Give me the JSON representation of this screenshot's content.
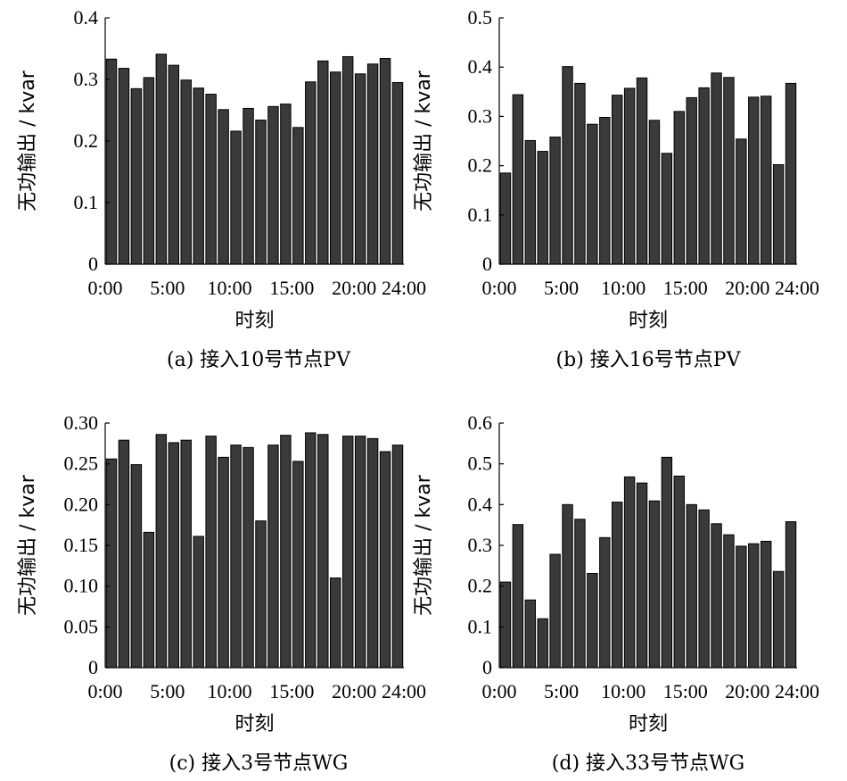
{
  "chart_data": [
    {
      "id": "a",
      "type": "bar",
      "caption": "(a) 接入10号节点PV",
      "xlabel": "时刻",
      "ylabel": "无功输出 / kvar",
      "ylim": [
        0,
        0.4
      ],
      "yticks": [
        "0",
        "0.1",
        "0.2",
        "0.3",
        "0.4"
      ],
      "xticks": [
        "0:00",
        "5:00",
        "10:00",
        "15:00",
        "20:00",
        "24:00"
      ],
      "xlim": [
        0,
        24
      ],
      "values": [
        0.333,
        0.318,
        0.285,
        0.303,
        0.341,
        0.323,
        0.299,
        0.286,
        0.276,
        0.251,
        0.216,
        0.253,
        0.234,
        0.256,
        0.26,
        0.222,
        0.296,
        0.33,
        0.312,
        0.337,
        0.309,
        0.325,
        0.334,
        0.295
      ]
    },
    {
      "id": "b",
      "type": "bar",
      "caption": "(b) 接入16号节点PV",
      "xlabel": "时刻",
      "ylabel": "无功输出 / kvar",
      "ylim": [
        0,
        0.5
      ],
      "yticks": [
        "0",
        "0.1",
        "0.2",
        "0.3",
        "0.4",
        "0.5"
      ],
      "xticks": [
        "0:00",
        "5:00",
        "10:00",
        "15:00",
        "20:00",
        "24:00"
      ],
      "xlim": [
        0,
        24
      ],
      "values": [
        0.185,
        0.344,
        0.251,
        0.229,
        0.258,
        0.401,
        0.367,
        0.284,
        0.298,
        0.343,
        0.357,
        0.378,
        0.292,
        0.225,
        0.31,
        0.338,
        0.358,
        0.388,
        0.379,
        0.254,
        0.339,
        0.341,
        0.202,
        0.367
      ]
    },
    {
      "id": "c",
      "type": "bar",
      "caption": "(c) 接入3号节点WG",
      "xlabel": "时刻",
      "ylabel": "无功输出 / kvar",
      "ylim": [
        0,
        0.3
      ],
      "yticks": [
        "0",
        "0.05",
        "0.10",
        "0.15",
        "0.20",
        "0.25",
        "0.30"
      ],
      "xticks": [
        "0:00",
        "5:00",
        "10:00",
        "15:00",
        "20:00",
        "24:00"
      ],
      "xlim": [
        0,
        24
      ],
      "values": [
        0.256,
        0.279,
        0.249,
        0.166,
        0.286,
        0.276,
        0.279,
        0.161,
        0.284,
        0.258,
        0.273,
        0.27,
        0.18,
        0.273,
        0.285,
        0.253,
        0.288,
        0.286,
        0.11,
        0.284,
        0.284,
        0.281,
        0.265,
        0.273
      ]
    },
    {
      "id": "d",
      "type": "bar",
      "caption": "(d) 接入33号节点WG",
      "xlabel": "时刻",
      "ylabel": "无功输出 / kvar",
      "ylim": [
        0,
        0.6
      ],
      "yticks": [
        "0",
        "0.1",
        "0.2",
        "0.3",
        "0.4",
        "0.5",
        "0.6"
      ],
      "xticks": [
        "0:00",
        "5:00",
        "10:00",
        "15:00",
        "20:00",
        "24:00"
      ],
      "xlim": [
        0,
        24
      ],
      "values": [
        0.21,
        0.351,
        0.166,
        0.12,
        0.278,
        0.4,
        0.364,
        0.231,
        0.319,
        0.406,
        0.468,
        0.453,
        0.409,
        0.516,
        0.47,
        0.4,
        0.387,
        0.353,
        0.326,
        0.298,
        0.304,
        0.31,
        0.236,
        0.358
      ]
    }
  ]
}
